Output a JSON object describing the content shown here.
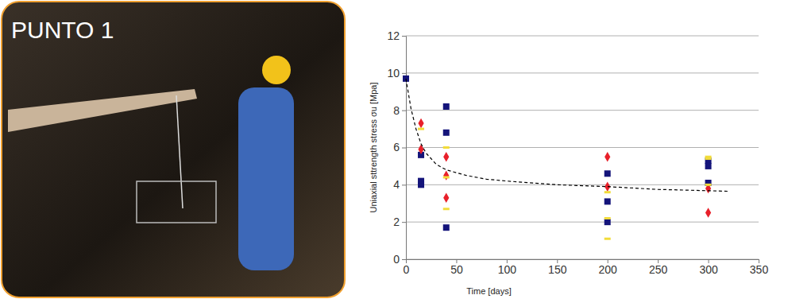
{
  "image_panel": {
    "caption": "PUNTO 1"
  },
  "chart_data": {
    "type": "scatter",
    "x_label": "Time [days]",
    "y_label": "Uniaxial sttrength stress σu [Mpa]",
    "xlim": [
      0,
      350
    ],
    "xticks": [
      0,
      50,
      100,
      150,
      200,
      250,
      300,
      350
    ],
    "ylim": [
      0,
      12
    ],
    "yticks": [
      0,
      2,
      4,
      6,
      8,
      10,
      12
    ],
    "grid": true,
    "series": [
      {
        "color": "#14147a",
        "marker": "square",
        "x": [
          0,
          15,
          15,
          15,
          40,
          40,
          40,
          200,
          200,
          200,
          300,
          300,
          300
        ],
        "values": [
          9.7,
          5.6,
          4.2,
          4.0,
          8.2,
          6.8,
          1.7,
          4.6,
          3.1,
          2.0,
          5.3,
          5.0,
          4.1
        ]
      },
      {
        "color": "#e8202a",
        "marker": "diamond",
        "x": [
          15,
          15,
          40,
          40,
          40,
          200,
          200,
          300,
          300
        ],
        "values": [
          7.3,
          5.9,
          5.5,
          4.5,
          3.3,
          5.5,
          3.9,
          3.8,
          2.5
        ]
      },
      {
        "color": "#f2dc3a",
        "marker": "dash",
        "x": [
          15,
          40,
          40,
          40,
          200,
          200,
          200,
          300,
          300,
          300
        ],
        "values": [
          7.0,
          6.0,
          4.4,
          2.7,
          3.6,
          2.2,
          1.1,
          5.5,
          5.4,
          4.0
        ]
      },
      {
        "type": "line",
        "color": "#000000",
        "line_style": "dashed",
        "x": [
          0,
          5,
          10,
          15,
          20,
          30,
          40,
          60,
          80,
          100,
          150,
          200,
          250,
          300,
          320
        ],
        "values": [
          9.7,
          8.1,
          7.0,
          6.2,
          5.7,
          5.1,
          4.8,
          4.5,
          4.3,
          4.2,
          4.0,
          3.9,
          3.75,
          3.68,
          3.65
        ]
      }
    ]
  }
}
